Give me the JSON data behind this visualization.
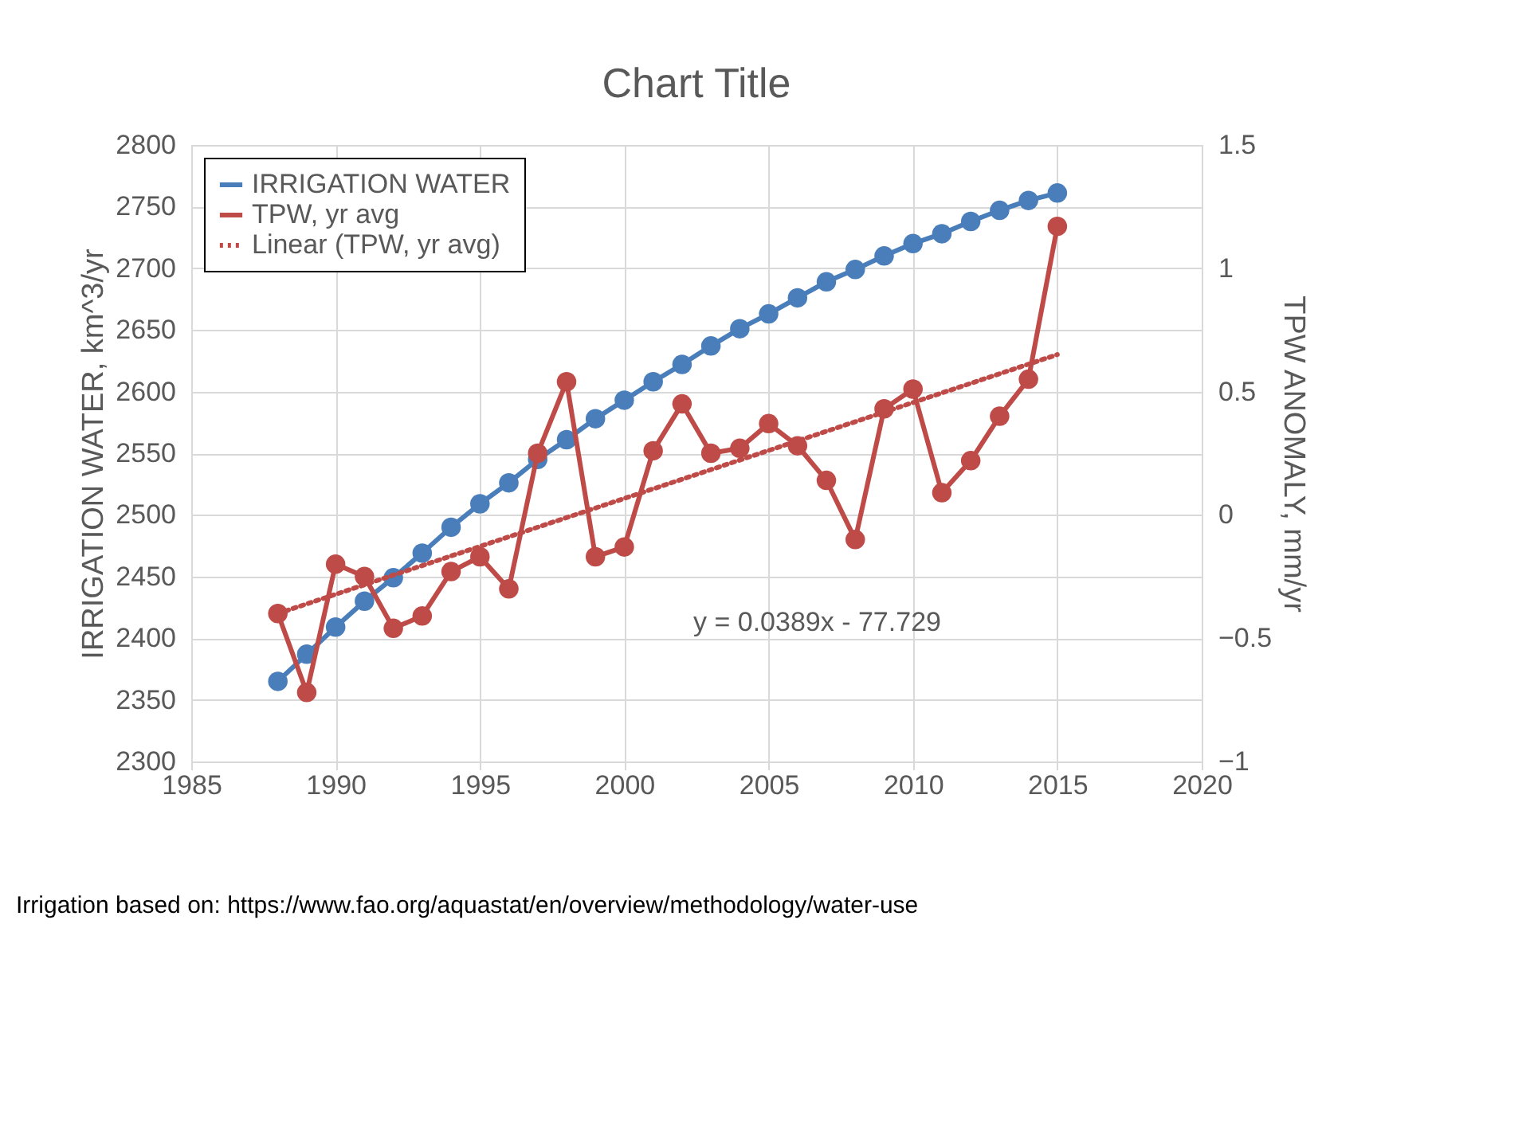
{
  "chart_data": {
    "type": "line",
    "title": "Chart Title",
    "xlabel": null,
    "ylabel": "IRRIGATION WATER, km^3/yr",
    "y2label": "TPW ANOMALY, mm/yr",
    "x": [
      1988,
      1989,
      1990,
      1991,
      1992,
      1993,
      1994,
      1995,
      1996,
      1997,
      1998,
      1999,
      2000,
      2001,
      2002,
      2003,
      2004,
      2005,
      2006,
      2007,
      2008,
      2009,
      2010,
      2011,
      2012,
      2013,
      2014,
      2015
    ],
    "series": [
      {
        "name": "IRRIGATION WATER",
        "color": "#4a7ebb",
        "marker": "circle",
        "values": [
          2365,
          2387,
          2409,
          2430,
          2449,
          2469,
          2490,
          2509,
          2526,
          2545,
          2561,
          2578,
          2593,
          2608,
          2622,
          2637,
          2651,
          2663,
          2676,
          2689,
          2699,
          2710,
          2720,
          2728,
          2738,
          2747,
          2755,
          2761
        ]
      },
      {
        "name": "TPW, yr avg",
        "color": "#be4b48",
        "marker": "circle",
        "axis": "y2",
        "values": [
          -0.4,
          -0.72,
          -0.2,
          -0.25,
          -0.46,
          -0.41,
          -0.23,
          -0.17,
          -0.3,
          0.25,
          0.54,
          -0.17,
          -0.13,
          0.26,
          0.45,
          0.25,
          0.27,
          0.37,
          0.28,
          0.14,
          -0.1,
          0.43,
          0.51,
          0.09,
          0.22,
          0.4,
          0.55,
          1.17
        ]
      },
      {
        "name": "Linear (TPW, yr avg)",
        "color": "#be4b48",
        "type": "line",
        "marker": "none",
        "line_style": "dotted",
        "axis": "y2",
        "x": [
          1988,
          2015
        ],
        "values": [
          -0.4,
          0.65
        ]
      }
    ],
    "xlim": [
      1985,
      2020
    ],
    "xticks": [
      1985,
      1990,
      1995,
      2000,
      2005,
      2010,
      2015,
      2020
    ],
    "ylim": [
      2300,
      2800
    ],
    "yticks": [
      2300,
      2350,
      2400,
      2450,
      2500,
      2550,
      2600,
      2650,
      2700,
      2750,
      2800
    ],
    "y2lim": [
      -1,
      1.5
    ],
    "y2ticks": [
      -1,
      -0.5,
      0,
      0.5,
      1,
      1.5
    ],
    "grid": true,
    "legend": "top left",
    "annotations": [
      "y = 0.0389x - 77.729",
      "Irrigation based on: https://www.fao.org/aquastat/en/overview/methodology/water-use"
    ]
  }
}
